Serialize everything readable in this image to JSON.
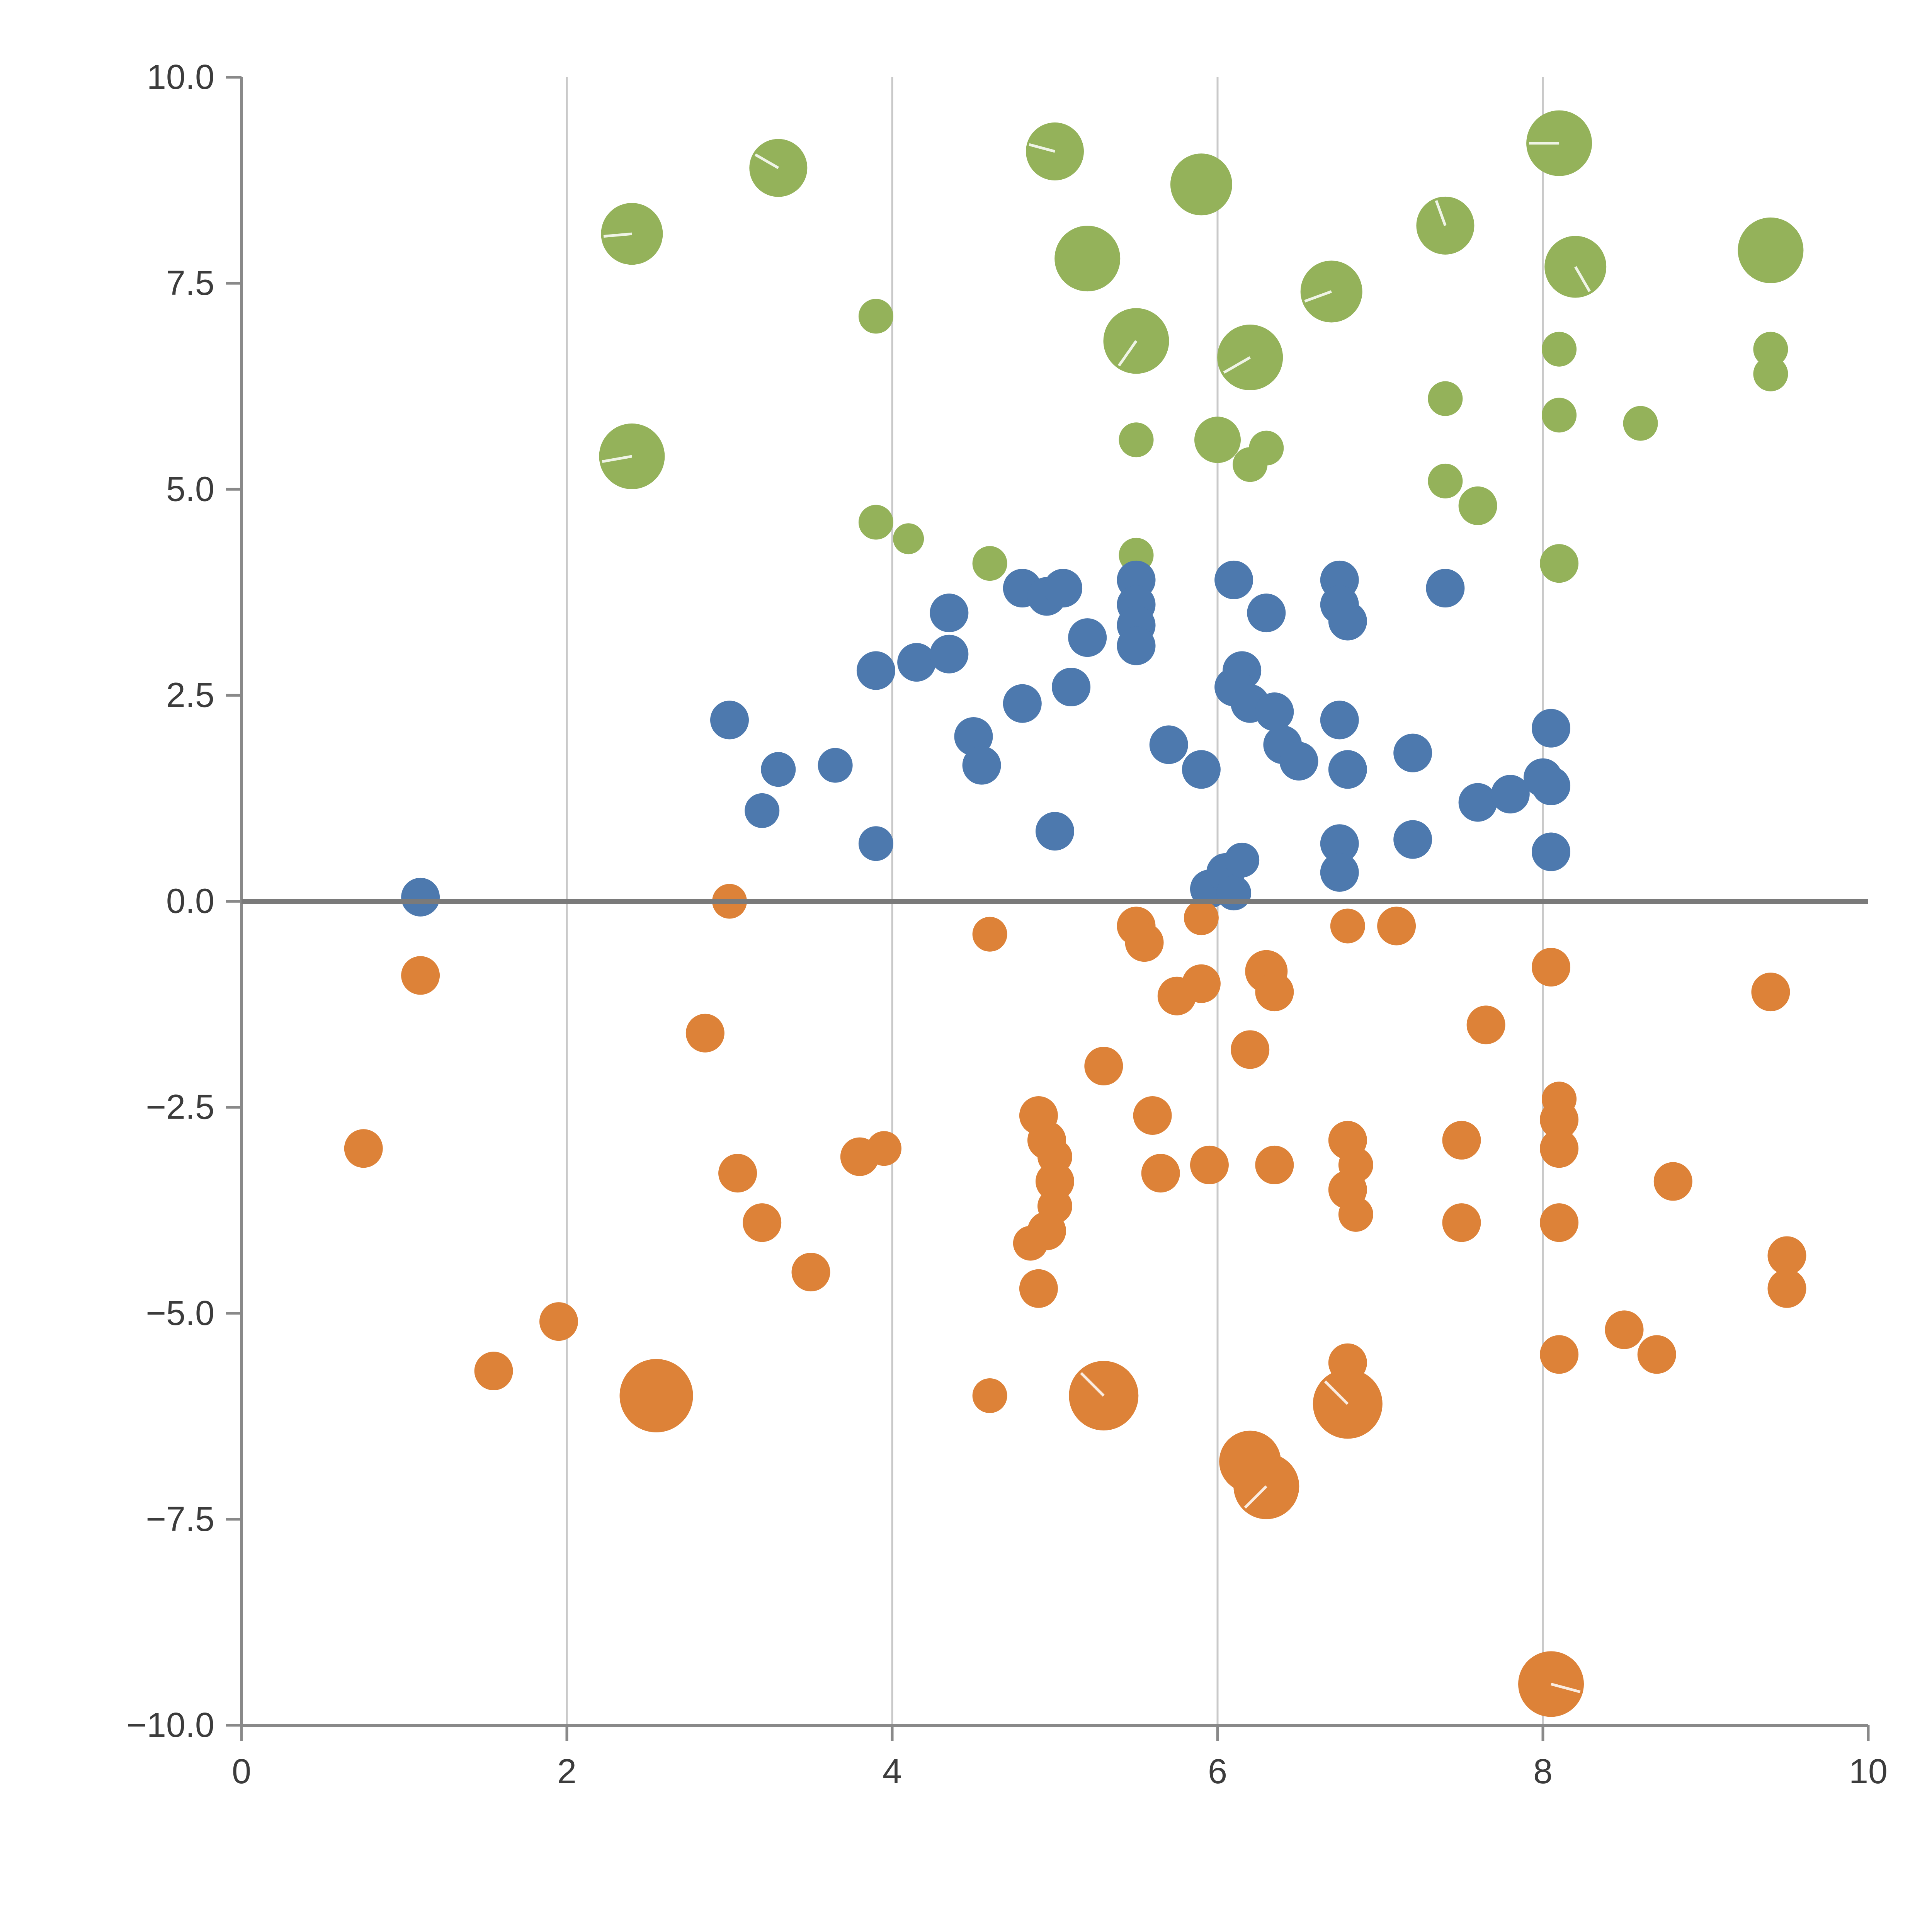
{
  "chart_data": {
    "type": "scatter",
    "subtype": "bubble",
    "title": "",
    "xlabel": "",
    "ylabel": "",
    "xlim": [
      0,
      10
    ],
    "ylim": [
      -10,
      10
    ],
    "x_ticks": [
      0,
      2,
      4,
      6,
      8,
      10
    ],
    "x_tick_labels": [
      "0",
      "2",
      "4",
      "6",
      "8",
      "10"
    ],
    "y_ticks": [
      10.0,
      7.5,
      5.0,
      2.5,
      0.0,
      -2.5,
      -5.0,
      -7.5,
      -10.0
    ],
    "y_tick_labels": [
      "10.0",
      "7.5",
      "5.0",
      "2.5",
      "0.0",
      "−2.5",
      "−5.0",
      "−7.5",
      "−10.0"
    ],
    "gridlines_x": [
      2,
      4,
      6,
      8
    ],
    "grid_on": true,
    "legend_position": "none",
    "zero_line_y": 0,
    "colors": {
      "background": "#ffffff",
      "grid": "#c9c9c9",
      "spine": "#898989",
      "zero_line": "#7a7a7a",
      "tick_text": "#3c3c3c"
    },
    "series": [
      {
        "name": "green",
        "color": "#94b25a",
        "points": [
          [
            2.4,
            8.1,
            16,
            185
          ],
          [
            3.3,
            8.9,
            15,
            150
          ],
          [
            5.0,
            9.1,
            15,
            165
          ],
          [
            5.9,
            8.7,
            16
          ],
          [
            8.1,
            9.2,
            17,
            180
          ],
          [
            5.2,
            7.8,
            17
          ],
          [
            6.7,
            7.4,
            16,
            200
          ],
          [
            7.4,
            8.2,
            15,
            110
          ],
          [
            8.2,
            7.7,
            16,
            300
          ],
          [
            9.4,
            7.9,
            17
          ],
          [
            3.9,
            7.1,
            9
          ],
          [
            5.5,
            6.8,
            17,
            235
          ],
          [
            6.2,
            6.6,
            17,
            210
          ],
          [
            8.1,
            6.7,
            9
          ],
          [
            9.4,
            6.7,
            9
          ],
          [
            9.4,
            6.4,
            9
          ],
          [
            2.4,
            5.4,
            17,
            190
          ],
          [
            5.5,
            5.6,
            9
          ],
          [
            6.0,
            5.6,
            12
          ],
          [
            6.3,
            5.5,
            9
          ],
          [
            6.2,
            5.3,
            9
          ],
          [
            7.4,
            6.1,
            9
          ],
          [
            8.1,
            5.9,
            9
          ],
          [
            8.6,
            5.8,
            9
          ],
          [
            7.4,
            5.1,
            9
          ],
          [
            7.6,
            4.8,
            10
          ],
          [
            3.9,
            4.6,
            9
          ],
          [
            4.1,
            4.4,
            8
          ],
          [
            4.6,
            4.1,
            9
          ],
          [
            5.5,
            4.2,
            9
          ],
          [
            8.1,
            4.1,
            10
          ]
        ]
      },
      {
        "name": "blue",
        "color": "#4d79ae",
        "points": [
          [
            1.1,
            0.05,
            10
          ],
          [
            3.0,
            2.2,
            10
          ],
          [
            3.2,
            1.1,
            9
          ],
          [
            3.3,
            1.6,
            9
          ],
          [
            3.65,
            1.65,
            9
          ],
          [
            3.9,
            0.7,
            9
          ],
          [
            3.9,
            2.8,
            10
          ],
          [
            4.15,
            2.9,
            10
          ],
          [
            4.35,
            3.0,
            10
          ],
          [
            4.35,
            3.5,
            10
          ],
          [
            4.5,
            2.0,
            10
          ],
          [
            4.55,
            1.65,
            10
          ],
          [
            4.8,
            3.8,
            10
          ],
          [
            4.95,
            3.7,
            10
          ],
          [
            4.8,
            2.4,
            10
          ],
          [
            5.05,
            3.8,
            10
          ],
          [
            5.0,
            0.85,
            10
          ],
          [
            5.1,
            2.6,
            10
          ],
          [
            5.2,
            3.2,
            10
          ],
          [
            5.5,
            3.9,
            10
          ],
          [
            5.5,
            3.6,
            10
          ],
          [
            5.5,
            3.35,
            10
          ],
          [
            5.5,
            3.1,
            10
          ],
          [
            5.7,
            1.9,
            10
          ],
          [
            5.9,
            1.6,
            10
          ],
          [
            6.1,
            3.9,
            10
          ],
          [
            6.15,
            2.8,
            10
          ],
          [
            6.1,
            2.6,
            10
          ],
          [
            6.2,
            2.4,
            10
          ],
          [
            6.3,
            3.5,
            10
          ],
          [
            6.35,
            2.3,
            10
          ],
          [
            6.4,
            1.9,
            10
          ],
          [
            6.5,
            1.7,
            10
          ],
          [
            5.95,
            0.15,
            10
          ],
          [
            6.05,
            0.35,
            10
          ],
          [
            6.1,
            0.1,
            9
          ],
          [
            6.15,
            0.5,
            9
          ],
          [
            6.75,
            3.9,
            10
          ],
          [
            6.75,
            3.6,
            10
          ],
          [
            6.8,
            3.4,
            10
          ],
          [
            6.75,
            2.2,
            10
          ],
          [
            6.8,
            1.6,
            10
          ],
          [
            6.75,
            0.7,
            10
          ],
          [
            6.75,
            0.35,
            10
          ],
          [
            7.2,
            0.75,
            10
          ],
          [
            7.2,
            1.8,
            10
          ],
          [
            7.4,
            3.8,
            10
          ],
          [
            7.6,
            1.2,
            10
          ],
          [
            7.8,
            1.3,
            10
          ],
          [
            8.0,
            1.5,
            10
          ],
          [
            8.05,
            2.1,
            10
          ],
          [
            8.05,
            1.4,
            10
          ],
          [
            8.05,
            0.6,
            10
          ]
        ]
      },
      {
        "name": "orange",
        "color": "#dd8238",
        "points": [
          [
            0.75,
            -3.0,
            10
          ],
          [
            1.1,
            -0.9,
            10
          ],
          [
            1.55,
            -5.7,
            10
          ],
          [
            1.95,
            -5.1,
            10
          ],
          [
            2.55,
            -6.0,
            19
          ],
          [
            2.85,
            -1.6,
            10
          ],
          [
            3.0,
            0.0,
            9
          ],
          [
            3.05,
            -3.3,
            10
          ],
          [
            3.2,
            -3.9,
            10
          ],
          [
            3.5,
            -4.5,
            10
          ],
          [
            3.8,
            -3.1,
            10
          ],
          [
            3.95,
            -3.0,
            9
          ],
          [
            4.6,
            -0.4,
            9
          ],
          [
            4.6,
            -6.0,
            9
          ],
          [
            4.9,
            -2.6,
            10
          ],
          [
            4.95,
            -2.9,
            10
          ],
          [
            5.0,
            -3.1,
            9
          ],
          [
            5.0,
            -3.4,
            10
          ],
          [
            5.0,
            -3.7,
            9
          ],
          [
            4.95,
            -4.0,
            10
          ],
          [
            4.85,
            -4.15,
            9
          ],
          [
            4.9,
            -4.7,
            10
          ],
          [
            5.3,
            -2.0,
            10
          ],
          [
            5.3,
            -6.0,
            18,
            135
          ],
          [
            5.5,
            -0.3,
            10
          ],
          [
            5.55,
            -0.5,
            10
          ],
          [
            5.6,
            -2.6,
            10
          ],
          [
            5.65,
            -3.3,
            10
          ],
          [
            5.75,
            -1.15,
            10
          ],
          [
            5.9,
            -1.0,
            10
          ],
          [
            5.9,
            -0.2,
            9
          ],
          [
            5.95,
            -3.2,
            10
          ],
          [
            6.2,
            -1.8,
            10
          ],
          [
            6.3,
            -0.85,
            11
          ],
          [
            6.35,
            -1.1,
            10
          ],
          [
            6.35,
            -3.2,
            10
          ],
          [
            6.2,
            -6.8,
            16
          ],
          [
            6.3,
            -7.1,
            17,
            225
          ],
          [
            6.8,
            -0.3,
            9
          ],
          [
            6.8,
            -2.9,
            10
          ],
          [
            6.85,
            -3.2,
            9
          ],
          [
            6.8,
            -3.5,
            10
          ],
          [
            6.85,
            -3.8,
            9
          ],
          [
            6.8,
            -5.6,
            10
          ],
          [
            6.8,
            -6.1,
            18,
            135
          ],
          [
            7.1,
            -0.3,
            10
          ],
          [
            7.5,
            -2.9,
            10
          ],
          [
            7.5,
            -3.9,
            10
          ],
          [
            7.65,
            -1.5,
            10
          ],
          [
            8.05,
            -0.8,
            10
          ],
          [
            8.1,
            -2.4,
            9
          ],
          [
            8.1,
            -2.65,
            10
          ],
          [
            8.1,
            -3.0,
            10
          ],
          [
            8.1,
            -3.9,
            10
          ],
          [
            8.1,
            -5.5,
            10
          ],
          [
            8.05,
            -9.5,
            17,
            345
          ],
          [
            8.5,
            -5.2,
            10
          ],
          [
            8.7,
            -5.5,
            10
          ],
          [
            8.8,
            -3.4,
            10
          ],
          [
            9.4,
            -1.1,
            10
          ],
          [
            9.5,
            -4.3,
            10
          ],
          [
            9.5,
            -4.7,
            10
          ]
        ]
      }
    ]
  }
}
